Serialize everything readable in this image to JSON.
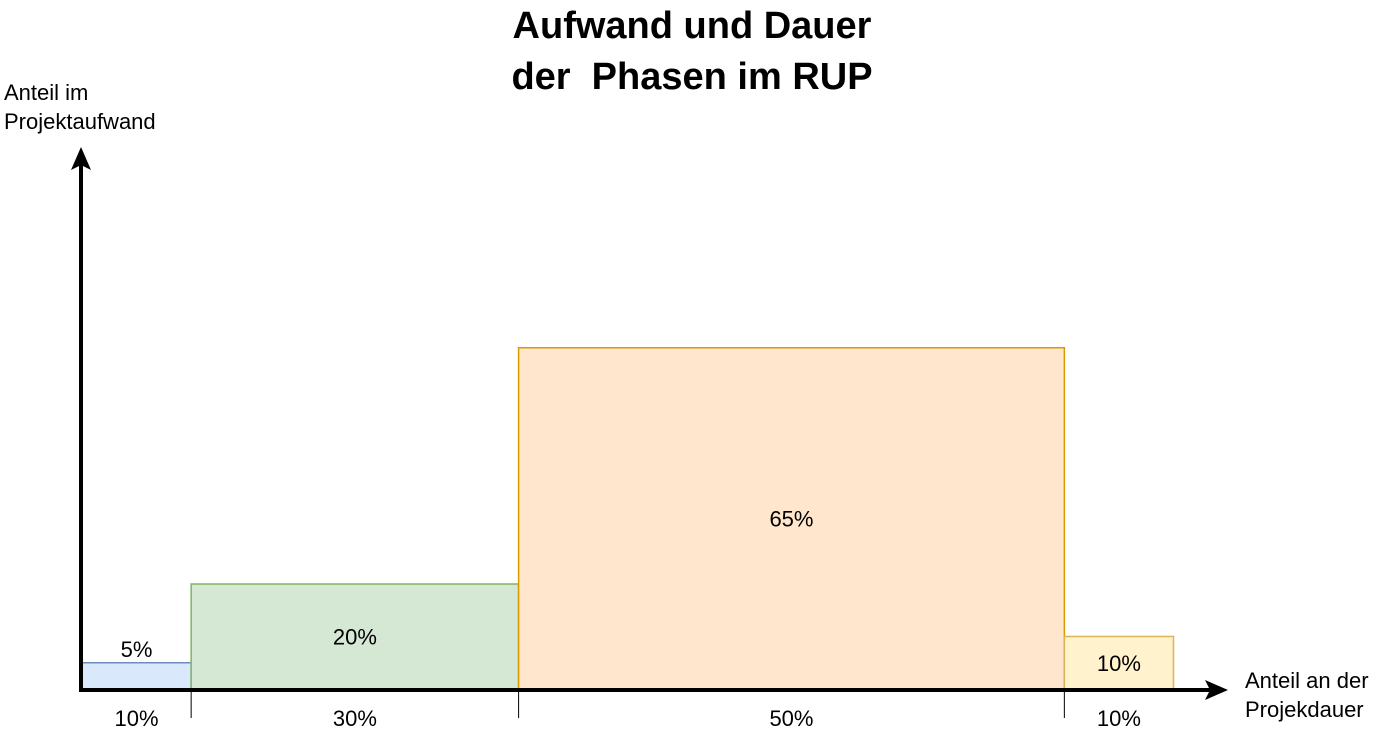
{
  "chart_data": {
    "type": "bar",
    "title_lines": [
      "Aufwand und Dauer",
      "der  Phasen im RUP"
    ],
    "ylabel_lines": [
      "Anteil im",
      "Projektaufwand"
    ],
    "xlabel_lines": [
      "Anteil an der",
      "Projekdauer"
    ],
    "units": "%",
    "bars": [
      {
        "duration": 10,
        "effort": 5,
        "duration_label": "10%",
        "effort_label": "5%",
        "fill": "#dae8fc",
        "stroke": "#6c8ebf"
      },
      {
        "duration": 30,
        "effort": 20,
        "duration_label": "30%",
        "effort_label": "20%",
        "fill": "#d5e8d4",
        "stroke": "#82b366"
      },
      {
        "duration": 50,
        "effort": 65,
        "duration_label": "50%",
        "effort_label": "65%",
        "fill": "#ffe6cc",
        "stroke": "#d79b00"
      },
      {
        "duration": 10,
        "effort": 10,
        "duration_label": "10%",
        "effort_label": "10%",
        "fill": "#fff2cc",
        "stroke": "#d6b656"
      }
    ],
    "effort_label_position": [
      "above",
      "inside",
      "inside",
      "inside"
    ],
    "axis_color": "#000000"
  }
}
